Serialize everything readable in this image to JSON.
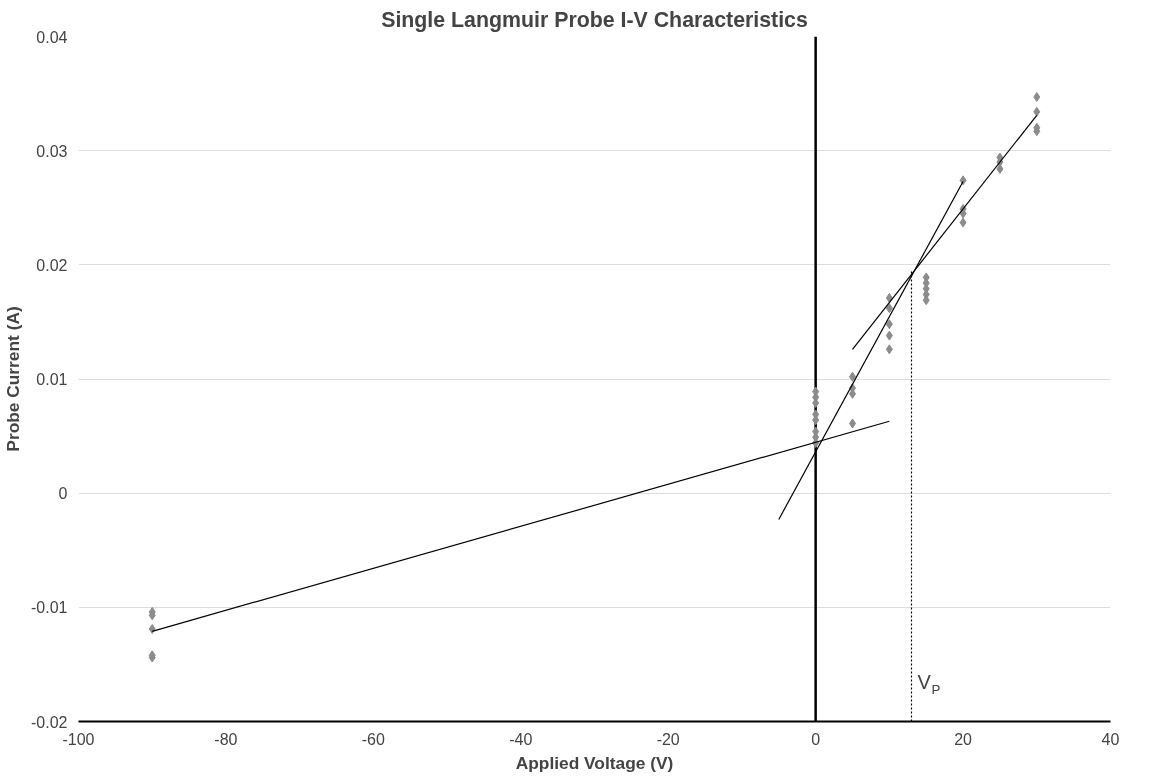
{
  "chart_data": {
    "type": "scatter",
    "title": "Single Langmuir Probe I-V Characteristics",
    "xlabel": "Applied Voltage (V)",
    "ylabel": "Probe Current (A)",
    "xlim": [
      -100,
      40
    ],
    "xticks": [
      -100,
      -80,
      -60,
      -40,
      -20,
      0,
      20,
      40
    ],
    "ylim": [
      -0.02,
      0.04
    ],
    "yticks": [
      -0.02,
      -0.01,
      0,
      0.01,
      0.02,
      0.03,
      0.04
    ],
    "grid": "y",
    "series": [
      {
        "marker": "diamond",
        "color": "#8c8c8c",
        "x": [
          -90,
          -90,
          -90,
          -90,
          -90,
          0,
          0,
          0,
          0,
          0,
          0,
          0,
          0,
          5,
          5,
          5,
          5,
          10,
          10,
          10,
          10,
          10,
          15,
          15,
          15,
          15,
          15,
          20,
          20,
          20,
          20,
          25,
          25,
          25,
          30,
          30,
          30,
          30
        ],
        "values": [
          -0.0104,
          -0.0107,
          -0.0119,
          -0.0142,
          -0.0144,
          0.0089,
          0.0084,
          0.0079,
          0.0069,
          0.0064,
          0.0054,
          0.0049,
          0.0044,
          0.0102,
          0.0092,
          0.0087,
          0.0061,
          0.0171,
          0.0162,
          0.0148,
          0.0138,
          0.0126,
          0.0189,
          0.0184,
          0.0179,
          0.0174,
          0.0169,
          0.0274,
          0.0249,
          0.0245,
          0.0237,
          0.0294,
          0.029,
          0.0284,
          0.0347,
          0.0334,
          0.032,
          0.0317
        ]
      },
      {
        "type": "line",
        "color": "#000000",
        "line_style": "solid",
        "x": [
          -90,
          10
        ],
        "values": [
          -0.0121,
          0.0063
        ]
      },
      {
        "type": "line",
        "color": "#000000",
        "line_style": "solid",
        "x": [
          -5,
          20
        ],
        "values": [
          -0.0023,
          0.0273
        ]
      },
      {
        "type": "line",
        "color": "#000000",
        "line_style": "solid",
        "x": [
          5,
          30
        ],
        "values": [
          0.0126,
          0.0331
        ]
      },
      {
        "type": "line",
        "color": "#000000",
        "line_style": "dotted",
        "x": [
          13,
          13
        ],
        "values": [
          -0.02,
          0.0195
        ]
      }
    ],
    "ref_lines": [
      {
        "axis": "x",
        "value": 0,
        "color": "#000000"
      }
    ],
    "annotations": [
      {
        "text": "V$_{P}$",
        "x": 13,
        "y": -0.0165
      }
    ]
  }
}
